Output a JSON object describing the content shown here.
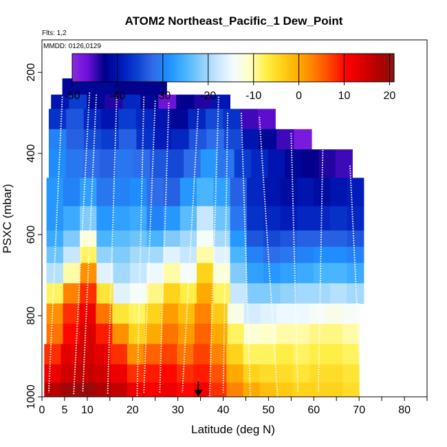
{
  "chart_data": {
    "type": "heatmap",
    "title": "ATOM2 Northeast_Pacific_1 Dew_Point",
    "flights_note": "Flts: 1,2",
    "date_note": "MMDD: 0126,0129",
    "xlabel": "Latitude (deg N)",
    "ylabel": "PSXC (mbar)",
    "xlim": [
      0,
      85
    ],
    "ylim": [
      1000,
      120
    ],
    "x_ticks": [
      0,
      5,
      10,
      20,
      30,
      40,
      50,
      60,
      70,
      80
    ],
    "x_tick_labels": [
      "0",
      "5",
      "10",
      "20",
      "30",
      "40",
      "50",
      "60",
      "70",
      "80"
    ],
    "y_ticks": [
      200,
      400,
      600,
      800,
      1000
    ],
    "y_tick_labels": [
      "200",
      "400",
      "600",
      "800",
      "1000"
    ],
    "marker_latitude": 34.5,
    "colorbar": {
      "min": -50,
      "max": 21,
      "ticks": [
        -50,
        -40,
        -30,
        -20,
        -10,
        0,
        10,
        20
      ],
      "tick_labels": [
        "-50",
        "-40",
        "-30",
        "-20",
        "-10",
        "0",
        "10",
        "20"
      ],
      "colors": [
        "#8a2be2",
        "#6a0fd8",
        "#00008b",
        "#0018b8",
        "#0b3fd0",
        "#2f6ae8",
        "#1e90ff",
        "#46b4ff",
        "#87cefa",
        "#c6e6ff",
        "#f4fbff",
        "#ffffc8",
        "#fff14a",
        "#ffd21a",
        "#ffae00",
        "#ff7f00",
        "#ff4500",
        "#ff0000",
        "#dc0000",
        "#b40000",
        "#8b1010"
      ]
    },
    "layers": [
      {
        "p_top": 215,
        "p_bot": 255,
        "lat_min": 4.5,
        "lat_max": 27.5,
        "values": [
          -42,
          -43
        ]
      },
      {
        "p_top": 255,
        "p_bot": 290,
        "lat_min": 2,
        "lat_max": 41.5,
        "values": [
          -40,
          -36,
          -42,
          -44,
          -38,
          -42,
          -47,
          -43,
          -44,
          -40
        ]
      },
      {
        "p_top": 290,
        "p_bot": 340,
        "lat_min": 1.5,
        "lat_max": 51.5,
        "values": [
          -37,
          -34,
          -38,
          -40,
          -36,
          -38,
          -40,
          -42,
          -38,
          -35,
          -37,
          -45,
          -46
        ]
      },
      {
        "p_top": 340,
        "p_bot": 390,
        "lat_min": 1.5,
        "lat_max": 59.5,
        "values": [
          -30,
          -33,
          -35,
          -36,
          -33,
          -37,
          -39,
          -38,
          -34,
          -32,
          -35,
          -40,
          -42,
          -45,
          -48
        ]
      },
      {
        "p_top": 390,
        "p_bot": 460,
        "lat_min": 1.5,
        "lat_max": 68.5,
        "values": [
          -29,
          -31,
          -32,
          -33,
          -31,
          -32,
          -34,
          -35,
          -32,
          -28,
          -31,
          -36,
          -38,
          -40,
          -42,
          -43,
          -44,
          -45
        ]
      },
      {
        "p_top": 460,
        "p_bot": 530,
        "lat_min": 1,
        "lat_max": 71,
        "values": [
          -28,
          -30,
          -27,
          -31,
          -30,
          -29,
          -32,
          -33,
          -28,
          -25,
          -27,
          -33,
          -38,
          -40,
          -41,
          -40,
          -41,
          -40,
          -39
        ]
      },
      {
        "p_top": 530,
        "p_bot": 590,
        "lat_min": 1,
        "lat_max": 71,
        "values": [
          -28,
          -26,
          -22,
          -28,
          -27,
          -26,
          -30,
          -28,
          -24,
          -18,
          -23,
          -31,
          -37,
          -38,
          -39,
          -38,
          -38,
          -37,
          -38
        ]
      },
      {
        "p_top": 590,
        "p_bot": 630,
        "lat_min": 1,
        "lat_max": 71,
        "values": [
          -26,
          -22,
          -12,
          -25,
          -24,
          -23,
          -25,
          -22,
          -20,
          -14,
          -20,
          -28,
          -34,
          -35,
          -34,
          -33,
          -33,
          -33,
          -34
        ]
      },
      {
        "p_top": 630,
        "p_bot": 670,
        "lat_min": 1,
        "lat_max": 71,
        "values": [
          -23,
          -18,
          -8,
          -21,
          -22,
          -20,
          -20,
          -16,
          -18,
          -10,
          -16,
          -25,
          -30,
          -32,
          -31,
          -30,
          -29,
          -29,
          -30
        ]
      },
      {
        "p_top": 670,
        "p_bot": 720,
        "lat_min": 1,
        "lat_max": 71,
        "values": [
          -19,
          -10,
          2,
          -16,
          -20,
          -18,
          -15,
          -10,
          -14,
          -4,
          -12,
          -22,
          -27,
          -28,
          -27,
          -26,
          -25,
          -25,
          -26
        ]
      },
      {
        "p_top": 720,
        "p_bot": 770,
        "lat_min": 1,
        "lat_max": 71,
        "values": [
          -8,
          3,
          8,
          -6,
          -16,
          -14,
          -9,
          -4,
          -7,
          0,
          -8,
          -18,
          -22,
          -22,
          -21,
          -20,
          -20,
          -19,
          -20
        ]
      },
      {
        "p_top": 770,
        "p_bot": 820,
        "lat_min": 1,
        "lat_max": 70,
        "values": [
          2,
          8,
          12,
          4,
          -6,
          -8,
          -4,
          1,
          -2,
          3,
          -3,
          -13,
          -17,
          -16,
          -15,
          -15,
          -14,
          -13,
          -14
        ]
      },
      {
        "p_top": 820,
        "p_bot": 870,
        "lat_min": 1,
        "lat_max": 70,
        "values": [
          4,
          10,
          14,
          9,
          2,
          -4,
          0,
          4,
          1,
          5,
          0,
          -8,
          -12,
          -11,
          -10,
          -10,
          -9,
          -9,
          -10
        ]
      },
      {
        "p_top": 870,
        "p_bot": 920,
        "lat_min": 0.5,
        "lat_max": 70,
        "values": [
          8,
          13,
          15,
          13,
          8,
          2,
          5,
          7,
          4,
          7,
          3,
          -4,
          -8,
          -8,
          -7,
          -8,
          -7,
          -7,
          -8
        ]
      },
      {
        "p_top": 920,
        "p_bot": 965,
        "lat_min": 0.5,
        "lat_max": 70,
        "values": [
          12,
          15,
          16,
          15,
          12,
          8,
          9,
          10,
          8,
          9,
          6,
          0,
          -4,
          -5,
          -5,
          -6,
          -5,
          -5,
          -6
        ]
      },
      {
        "p_top": 965,
        "p_bot": 1010,
        "lat_min": 0.5,
        "lat_max": 70,
        "values": [
          17,
          19,
          20,
          18,
          16,
          12,
          11,
          12,
          10,
          11,
          8,
          3,
          0,
          -2,
          -3,
          -4,
          -4,
          -4,
          -5
        ]
      }
    ],
    "profiles": [
      {
        "lat_top": 4.5,
        "lat_bot": 1.5,
        "p_top": 260,
        "p_bot": 990
      },
      {
        "lat_top": 10.5,
        "lat_bot": 7,
        "p_top": 250,
        "p_bot": 995
      },
      {
        "lat_top": 12,
        "lat_bot": 9,
        "p_top": 255,
        "p_bot": 990
      },
      {
        "lat_top": 16.5,
        "lat_bot": 14.5,
        "p_top": 260,
        "p_bot": 995
      },
      {
        "lat_top": 22.5,
        "lat_bot": 21,
        "p_top": 260,
        "p_bot": 1000
      },
      {
        "lat_top": 25,
        "lat_bot": 22.5,
        "p_top": 270,
        "p_bot": 990
      },
      {
        "lat_top": 28,
        "lat_bot": 26,
        "p_top": 275,
        "p_bot": 990
      },
      {
        "lat_top": 34.5,
        "lat_bot": 31,
        "p_top": 290,
        "p_bot": 990
      },
      {
        "lat_top": 39,
        "lat_bot": 37,
        "p_top": 260,
        "p_bot": 1000
      },
      {
        "lat_top": 41,
        "lat_bot": 40,
        "p_top": 300,
        "p_bot": 990
      },
      {
        "lat_top": 44,
        "lat_bot": 46,
        "p_top": 300,
        "p_bot": 1000
      },
      {
        "lat_top": 48,
        "lat_bot": 52,
        "p_top": 310,
        "p_bot": 1000
      },
      {
        "lat_top": 55,
        "lat_bot": 56.5,
        "p_top": 350,
        "p_bot": 990
      },
      {
        "lat_top": 62,
        "lat_bot": 61,
        "p_top": 380,
        "p_bot": 990
      },
      {
        "lat_top": 68,
        "lat_bot": 70.5,
        "p_top": 430,
        "p_bot": 1000
      }
    ]
  }
}
